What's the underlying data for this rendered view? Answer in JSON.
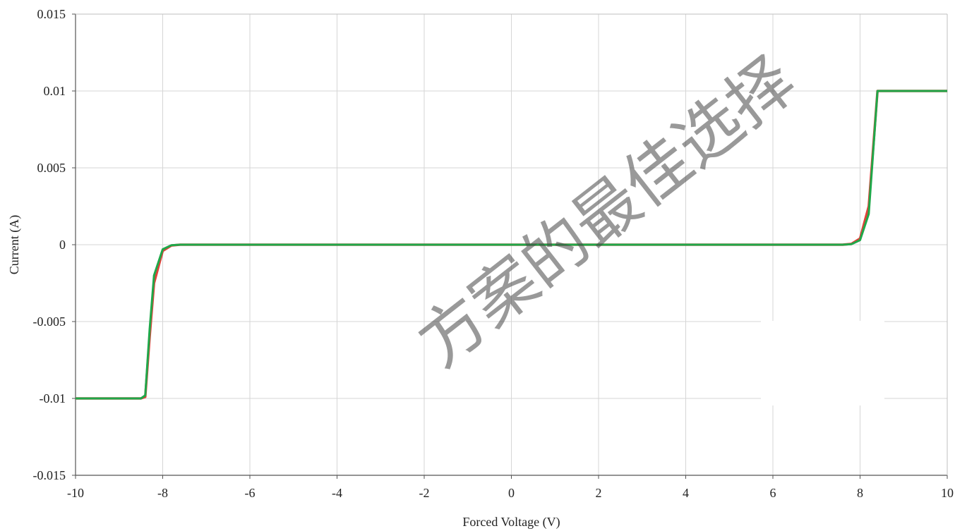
{
  "chart_data": {
    "type": "line",
    "xlabel": "Forced Voltage (V)",
    "ylabel": "Current (A)",
    "xlim": [
      -10,
      10
    ],
    "ylim": [
      -0.015,
      0.015
    ],
    "x_ticks": [
      "-10",
      "-8",
      "-6",
      "-4",
      "-2",
      "0",
      "2",
      "4",
      "6",
      "8",
      "10"
    ],
    "y_ticks": [
      "0.015",
      "0.01",
      "0.005",
      "0",
      "-0.005",
      "-0.01",
      "-0.015"
    ],
    "grid": true,
    "series": [
      {
        "color": "#e0413a",
        "x": [
          -10,
          -8.5,
          -8.4,
          -8.3,
          -8.2,
          -8.0,
          -7.8,
          -7.6,
          0,
          7.6,
          7.8,
          8.0,
          8.2,
          8.4,
          10
        ],
        "y": [
          -0.01,
          -0.01,
          -0.0099,
          -0.006,
          -0.0025,
          -0.0004,
          -5e-05,
          0,
          0,
          0,
          5e-05,
          0.0004,
          0.0025,
          0.01,
          0.01
        ]
      },
      {
        "color": "#1fa84a",
        "x": [
          -10,
          -8.5,
          -8.4,
          -8.3,
          -8.2,
          -8.0,
          -7.8,
          -7.6,
          0,
          7.6,
          7.8,
          8.0,
          8.2,
          8.4,
          10
        ],
        "y": [
          -0.01,
          -0.01,
          -0.0098,
          -0.0055,
          -0.002,
          -0.0003,
          -3e-05,
          0,
          0,
          0,
          3e-05,
          0.0003,
          0.002,
          0.01,
          0.01
        ]
      }
    ]
  },
  "watermark": "方案的最佳选择"
}
